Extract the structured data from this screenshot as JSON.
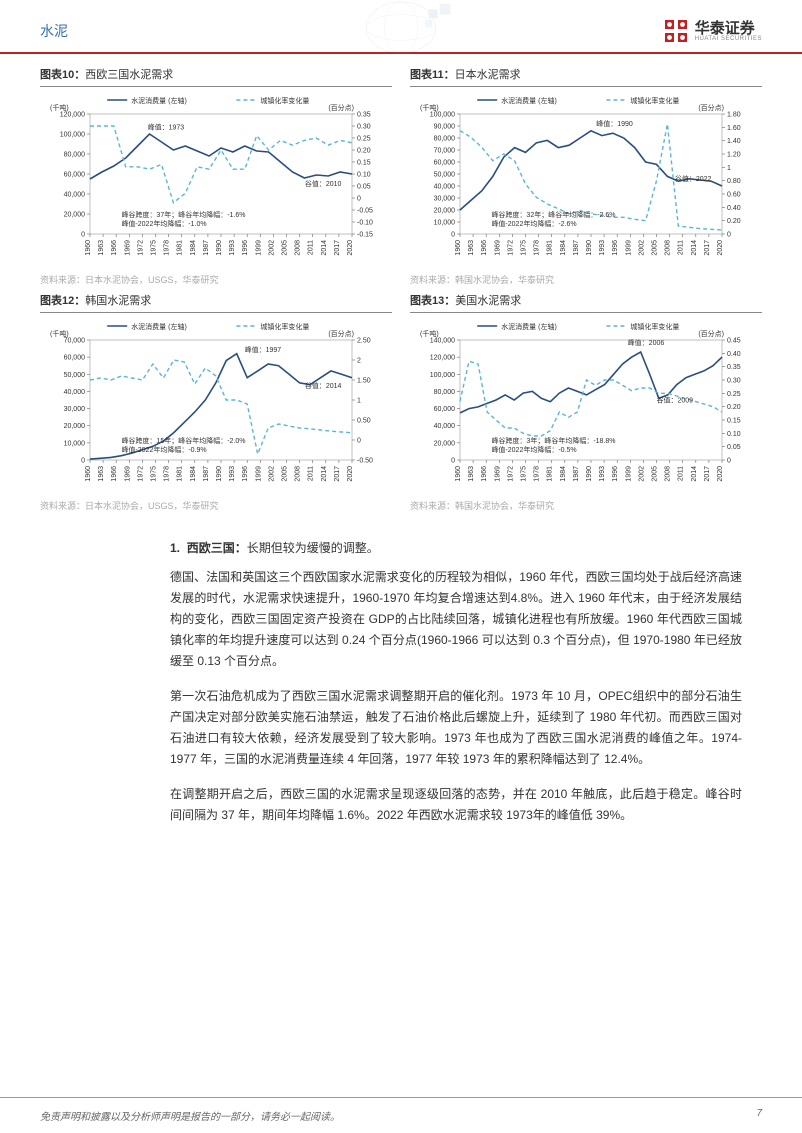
{
  "header": {
    "title": "水泥",
    "logo_cn": "华泰证券",
    "logo_en": "HUATAI SECURITIES",
    "logo_color": "#c02020"
  },
  "charts": [
    {
      "id": "chart10",
      "caption_num": "图表10：",
      "caption_title": "西欧三国水泥需求",
      "source": "资料来源：日本水泥协会，USGS，华泰研究",
      "legend_solid": "水泥消费量 (左轴)",
      "legend_dash": "城镇化率变化量",
      "y1_unit": "(千吨)",
      "y2_unit": "(百分点)",
      "x_labels": [
        "1960",
        "1963",
        "1966",
        "1969",
        "1972",
        "1975",
        "1978",
        "1981",
        "1984",
        "1987",
        "1990",
        "1993",
        "1996",
        "1999",
        "2002",
        "2005",
        "2008",
        "2011",
        "2014",
        "2017",
        "2020"
      ],
      "y1_ticks": [
        0,
        20000,
        40000,
        60000,
        80000,
        100000,
        120000
      ],
      "y2_ticks": [
        -0.15,
        -0.1,
        -0.05,
        0.0,
        0.05,
        0.1,
        0.15,
        0.2,
        0.25,
        0.3,
        0.35
      ],
      "y1_min": 0,
      "y1_max": 120000,
      "y2_min": -0.15,
      "y2_max": 0.35,
      "series_solid": [
        55000,
        62000,
        68000,
        76000,
        88000,
        100000,
        92000,
        84000,
        88000,
        83000,
        78000,
        86000,
        82000,
        88000,
        83000,
        82000,
        72000,
        62000,
        56000,
        59000,
        58000,
        62000,
        60000
      ],
      "series_dash": [
        0.3,
        0.3,
        0.3,
        0.13,
        0.13,
        0.12,
        0.14,
        -0.02,
        0.02,
        0.13,
        0.12,
        0.2,
        0.12,
        0.12,
        0.26,
        0.2,
        0.24,
        0.22,
        0.24,
        0.25,
        0.22,
        0.24,
        0.23
      ],
      "solid_color": "#2a4e7c",
      "dash_color": "#5bb5d4",
      "annot_peak": "峰值：1973",
      "annot_peak_x": 0.22,
      "annot_peak_y": 0.13,
      "annot_valley": "谷值：2010",
      "annot_valley_x": 0.82,
      "annot_valley_y": 0.6,
      "annot_line1": "峰谷跨度：37年；峰谷年均降幅：-1.6%",
      "annot_line2": "峰值-2022年均降幅：-1.0%",
      "annot_lines_y": 0.86
    },
    {
      "id": "chart11",
      "caption_num": "图表11：",
      "caption_title": "日本水泥需求",
      "source": "资料来源：韩国水泥协会，华泰研究",
      "legend_solid": "水泥消费量 (左轴)",
      "legend_dash": "城镇化率变化量",
      "y1_unit": "(千吨)",
      "y2_unit": "(百分点)",
      "x_labels": [
        "1960",
        "1963",
        "1966",
        "1969",
        "1972",
        "1975",
        "1978",
        "1981",
        "1984",
        "1987",
        "1990",
        "1993",
        "1996",
        "1999",
        "2002",
        "2005",
        "2008",
        "2011",
        "2014",
        "2017",
        "2020"
      ],
      "y1_ticks": [
        0,
        10000,
        20000,
        30000,
        40000,
        50000,
        60000,
        70000,
        80000,
        90000,
        100000
      ],
      "y2_ticks": [
        0.0,
        0.2,
        0.4,
        0.6,
        0.8,
        1.0,
        1.2,
        1.4,
        1.6,
        1.8
      ],
      "y1_min": 0,
      "y1_max": 100000,
      "y2_min": 0.0,
      "y2_max": 1.8,
      "series_solid": [
        20000,
        28000,
        36000,
        48000,
        64000,
        72000,
        68000,
        76000,
        78000,
        72000,
        74000,
        80000,
        86000,
        82000,
        84000,
        80000,
        72000,
        60000,
        58000,
        48000,
        44000,
        46000,
        45000,
        44000,
        40000
      ],
      "series_dash": [
        1.55,
        1.45,
        1.3,
        1.1,
        1.2,
        1.1,
        0.75,
        0.55,
        0.45,
        0.38,
        0.3,
        0.35,
        0.3,
        0.28,
        0.25,
        0.25,
        0.22,
        0.2,
        0.8,
        1.65,
        0.12,
        0.1,
        0.08,
        0.07,
        0.06
      ],
      "solid_color": "#2a4e7c",
      "dash_color": "#5bb5d4",
      "annot_peak": "峰值：1990",
      "annot_peak_x": 0.52,
      "annot_peak_y": 0.1,
      "annot_valley": "谷值：2022",
      "annot_valley_x": 0.82,
      "annot_valley_y": 0.56,
      "annot_line1": "峰谷跨度：32年；峰谷年均降幅：-2.6%",
      "annot_line2": "峰值-2022年均降幅：-2.6%",
      "annot_lines_y": 0.86
    },
    {
      "id": "chart12",
      "caption_num": "图表12：",
      "caption_title": "韩国水泥需求",
      "source": "资料来源：日本水泥协会，USGS，华泰研究",
      "legend_solid": "水泥消费量 (左轴)",
      "legend_dash": "城镇化率变化量",
      "y1_unit": "(千吨)",
      "y2_unit": "(百分点)",
      "x_labels": [
        "1960",
        "1963",
        "1966",
        "1969",
        "1972",
        "1975",
        "1978",
        "1981",
        "1984",
        "1987",
        "1990",
        "1993",
        "1996",
        "1999",
        "2002",
        "2005",
        "2008",
        "2011",
        "2014",
        "2017",
        "2020"
      ],
      "y1_ticks": [
        0,
        10000,
        20000,
        30000,
        40000,
        50000,
        60000,
        70000
      ],
      "y2_ticks": [
        -0.5,
        0.0,
        0.5,
        1.0,
        1.5,
        2.0,
        2.5
      ],
      "y1_min": 0,
      "y1_max": 70000,
      "y2_min": -0.5,
      "y2_max": 2.5,
      "series_solid": [
        500,
        1000,
        1500,
        2500,
        4000,
        6000,
        8000,
        11000,
        16000,
        22000,
        28000,
        35000,
        45000,
        58000,
        62000,
        48000,
        52000,
        56000,
        55000,
        50000,
        45000,
        44000,
        48000,
        52000,
        50000,
        48000
      ],
      "series_dash": [
        1.5,
        1.55,
        1.5,
        1.6,
        1.55,
        1.5,
        1.9,
        1.55,
        2.0,
        1.95,
        1.4,
        1.8,
        1.6,
        1.0,
        1.0,
        0.9,
        -0.35,
        0.3,
        0.4,
        0.35,
        0.3,
        0.28,
        0.25,
        0.22,
        0.2,
        0.18
      ],
      "solid_color": "#2a4e7c",
      "dash_color": "#5bb5d4",
      "annot_peak": "峰值：1997",
      "annot_peak_x": 0.59,
      "annot_peak_y": 0.1,
      "annot_valley": "谷值：2014",
      "annot_valley_x": 0.82,
      "annot_valley_y": 0.4,
      "annot_line1": "峰谷跨度：15年；峰谷年均降幅：-2.0%",
      "annot_line2": "峰值-2022年均降幅：-0.9%",
      "annot_lines_y": 0.86
    },
    {
      "id": "chart13",
      "caption_num": "图表13：",
      "caption_title": "美国水泥需求",
      "source": "资料来源：韩国水泥协会，华泰研究",
      "legend_solid": "水泥消费量 (左轴)",
      "legend_dash": "城镇化率变化量",
      "y1_unit": "(千吨)",
      "y2_unit": "(百分点)",
      "x_labels": [
        "1960",
        "1963",
        "1966",
        "1969",
        "1972",
        "1975",
        "1978",
        "1981",
        "1984",
        "1987",
        "1990",
        "1993",
        "1996",
        "1999",
        "2002",
        "2005",
        "2008",
        "2011",
        "2014",
        "2017",
        "2020"
      ],
      "y1_ticks": [
        0,
        20000,
        40000,
        60000,
        80000,
        100000,
        120000,
        140000
      ],
      "y2_ticks": [
        0.0,
        0.05,
        0.1,
        0.15,
        0.2,
        0.25,
        0.3,
        0.35,
        0.4,
        0.45
      ],
      "y1_min": 0,
      "y1_max": 140000,
      "y2_min": 0.0,
      "y2_max": 0.45,
      "series_solid": [
        55000,
        60000,
        62000,
        66000,
        70000,
        76000,
        70000,
        78000,
        80000,
        72000,
        68000,
        78000,
        84000,
        80000,
        76000,
        82000,
        88000,
        100000,
        112000,
        120000,
        126000,
        100000,
        72000,
        76000,
        88000,
        96000,
        100000,
        104000,
        110000,
        120000
      ],
      "series_dash": [
        0.22,
        0.37,
        0.36,
        0.18,
        0.15,
        0.12,
        0.12,
        0.1,
        0.09,
        0.09,
        0.11,
        0.18,
        0.16,
        0.18,
        0.3,
        0.28,
        0.3,
        0.3,
        0.28,
        0.26,
        0.27,
        0.27,
        0.25,
        0.25,
        0.24,
        0.23,
        0.22,
        0.21,
        0.2,
        0.18
      ],
      "solid_color": "#2a4e7c",
      "dash_color": "#5bb5d4",
      "annot_peak": "峰值：2006",
      "annot_peak_x": 0.64,
      "annot_peak_y": 0.04,
      "annot_valley": "谷值：2009",
      "annot_valley_x": 0.75,
      "annot_valley_y": 0.52,
      "annot_line1": "峰谷跨度：3年；峰谷年均降幅：-18.8%",
      "annot_line2": "峰值-2022年均降幅：-0.5%",
      "annot_lines_y": 0.86
    }
  ],
  "body": {
    "section_num": "1.",
    "section_title_bold": "西欧三国：",
    "section_title_rest": "长期但较为缓慢的调整。",
    "p1": "德国、法国和英国这三个西欧国家水泥需求变化的历程较为相似，1960 年代，西欧三国均处于战后经济高速发展的时代，水泥需求快速提升，1960-1970 年均复合增速达到4.8%。进入 1960 年代末，由于经济发展结构的变化，西欧三国固定资产投资在 GDP的占比陆续回落，城镇化进程也有所放缓。1960 年代西欧三国城镇化率的年均提升速度可以达到 0.24 个百分点(1960-1966 可以达到 0.3 个百分点)，但 1970-1980 年已经放缓至 0.13 个百分点。",
    "p2": "第一次石油危机成为了西欧三国水泥需求调整期开启的催化剂。1973 年 10 月，OPEC组织中的部分石油生产国决定对部分欧美实施石油禁运，触发了石油价格此后螺旋上升，延续到了 1980 年代初。而西欧三国对石油进口有较大依赖，经济发展受到了较大影响。1973 年也成为了西欧三国水泥消费的峰值之年。1974-1977 年，三国的水泥消费量连续 4 年回落，1977 年较 1973 年的累积降幅达到了 12.4%。",
    "p3": "在调整期开启之后，西欧三国的水泥需求呈现逐级回落的态势，并在 2010 年触底，此后趋于稳定。峰谷时间间隔为 37 年，期间年均降幅 1.6%。2022 年西欧水泥需求较 1973年的峰值低 39%。"
  },
  "footer": {
    "disclaimer": "免责声明和披露以及分析师声明是报告的一部分，请务必一起阅读。",
    "page": "7"
  },
  "colors": {
    "accent_red": "#c02020",
    "accent_blue": "#3a6fb0",
    "line_solid": "#2a4e7c",
    "line_dash": "#5bb5d4",
    "grid": "#cccccc",
    "text": "#333333",
    "muted": "#aaaaaa"
  }
}
